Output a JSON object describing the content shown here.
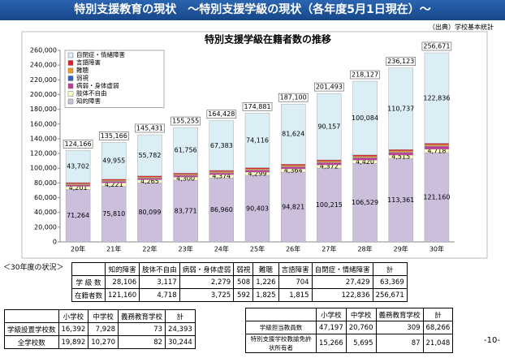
{
  "header": {
    "title": "特別支援教育の現状　～特別支援学級の現状（各年度5月1日現在）～",
    "source": "（出典）学校基本統計"
  },
  "chart_data": {
    "type": "bar",
    "stacked": true,
    "title": "特別支援学級在籍者数の推移",
    "categories": [
      "20年",
      "21年",
      "22年",
      "23年",
      "24年",
      "25年",
      "26年",
      "27年",
      "28年",
      "29年",
      "30年"
    ],
    "series": [
      {
        "name": "知的障害",
        "color": "#cbbfdc",
        "values": [
          71264,
          75810,
          80099,
          83771,
          86960,
          90403,
          94821,
          100215,
          106529,
          113361,
          121160
        ],
        "value_labels": [
          "71,264",
          "75,810",
          "80,099",
          "83,771",
          "86,960",
          "90,403",
          "94,821",
          "100,215",
          "106,529",
          "113,361",
          "121,160"
        ]
      },
      {
        "name": "肢体不自由",
        "color": "#ffffc8",
        "values": [
          4201,
          4221,
          4265,
          4300,
          4374,
          4299,
          4364,
          4372,
          4420,
          4515,
          4718
        ],
        "value_labels": [
          "4,201",
          "4,221",
          "4,265",
          "4,300",
          "4,374",
          "4,299",
          "4,364",
          "4,372",
          "4,420",
          "4,515",
          "4,718"
        ]
      },
      {
        "name": "病弱・身体虚弱",
        "color": "#c0399a",
        "values": [
          1800,
          1900,
          1950,
          2050,
          2200,
          2450,
          2570,
          2870,
          3030,
          3300,
          3725
        ]
      },
      {
        "name": "弱視",
        "color": "#2f5fc0",
        "values": [
          400,
          400,
          410,
          420,
          440,
          460,
          480,
          500,
          530,
          560,
          592
        ]
      },
      {
        "name": "難聴",
        "color": "#f39a1e",
        "values": [
          1200,
          1250,
          1280,
          1300,
          1350,
          1400,
          1450,
          1560,
          1640,
          1730,
          1825
        ]
      },
      {
        "name": "言語障害",
        "color": "#d9202a",
        "values": [
          1599,
          1630,
          1645,
          1658,
          1721,
          1753,
          1791,
          1819,
          1894,
          1920,
          1815
        ]
      },
      {
        "name": "自閉症・情緒障害",
        "color": "#dceef5",
        "values": [
          43702,
          49955,
          55782,
          61756,
          67383,
          74116,
          81624,
          90157,
          100084,
          110737,
          122836
        ],
        "value_labels": [
          "43,702",
          "49,955",
          "55,782",
          "61,756",
          "67,383",
          "74,116",
          "81,624",
          "90,157",
          "100,084",
          "110,737",
          "122,836"
        ]
      }
    ],
    "totals": {
      "values": [
        124166,
        135166,
        145431,
        155255,
        164428,
        174881,
        187100,
        201493,
        218127,
        236123,
        256671
      ],
      "value_labels": [
        "124,166",
        "135,166",
        "145,431",
        "155,255",
        "164,428",
        "174,881",
        "187,100",
        "201,493",
        "218,127",
        "236,123",
        "256,671"
      ]
    },
    "ylim": [
      0,
      260000
    ],
    "yticks": [
      0,
      {
        "value": 20000,
        "label": "20,000"
      },
      {
        "value": 40000,
        "label": "40,000"
      },
      {
        "value": 60000,
        "label": "60,000"
      },
      {
        "value": 80000,
        "label": "80,000"
      },
      {
        "value": 100000,
        "label": "100,000"
      },
      {
        "value": 120000,
        "label": "120,000"
      },
      {
        "value": 140000,
        "label": "140,000"
      },
      {
        "value": 160000,
        "label": "160,000"
      },
      {
        "value": 180000,
        "label": "180,000"
      },
      {
        "value": 200000,
        "label": "200,000"
      },
      {
        "value": 220000,
        "label": "220,000"
      },
      {
        "value": 240000,
        "label": "240,000"
      },
      {
        "value": 260000,
        "label": "260,000"
      }
    ],
    "grid": false,
    "legend": "upper left"
  },
  "caption": "＜30年度の状況＞",
  "tables": [
    {
      "header": [
        "",
        "知的障害",
        "肢体不自由",
        "病弱・身体虚弱",
        "弱視",
        "難聴",
        "言語障害",
        "自閉症・情緒障害",
        "計"
      ],
      "rows": [
        [
          "学 級 数",
          "28,106",
          "3,117",
          "2,279",
          "508",
          "1,226",
          "704",
          "27,429",
          "63,369"
        ],
        [
          "在籍者数",
          "121,160",
          "4,718",
          "3,725",
          "592",
          "1,825",
          "1,815",
          "122,836",
          "256,671"
        ]
      ]
    },
    {
      "header": [
        "",
        "小学校",
        "中学校",
        "義務教育学校",
        "計"
      ],
      "rows": [
        [
          "学級設置学校数",
          "16,392",
          "7,928",
          "73",
          "24,393"
        ],
        [
          "全学校数",
          "19,892",
          "10,270",
          "82",
          "30,244"
        ]
      ]
    },
    {
      "header": [
        "",
        "小学校",
        "中学校",
        "義務教育学校",
        "計"
      ],
      "rows": [
        [
          "学級担当教員数",
          "47,197",
          "20,760",
          "309",
          "68,266"
        ],
        [
          "特別支援学校教諭免許状所有者",
          "15,266",
          "5,695",
          "87",
          "21,048"
        ]
      ]
    }
  ],
  "page_number": "-10-"
}
